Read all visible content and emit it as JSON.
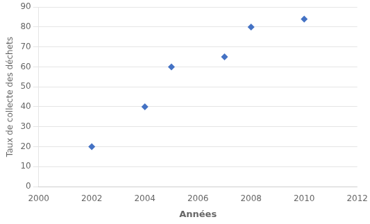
{
  "chart_data": {
    "type": "scatter",
    "x": [
      2002,
      2004,
      2005,
      2007,
      2008,
      2010
    ],
    "values": [
      20,
      40,
      60,
      65,
      80,
      84
    ],
    "color": "#4472C4",
    "marker": "diamond",
    "xlabel": "Années",
    "ylabel": "Taux de collecte des déchets",
    "xlim": [
      2000,
      2012
    ],
    "ylim": [
      0,
      90
    ],
    "xticks": [
      2000,
      2002,
      2004,
      2006,
      2008,
      2010,
      2012
    ],
    "yticks": [
      0,
      10,
      20,
      30,
      40,
      50,
      60,
      70,
      80,
      90
    ],
    "grid": "y"
  }
}
